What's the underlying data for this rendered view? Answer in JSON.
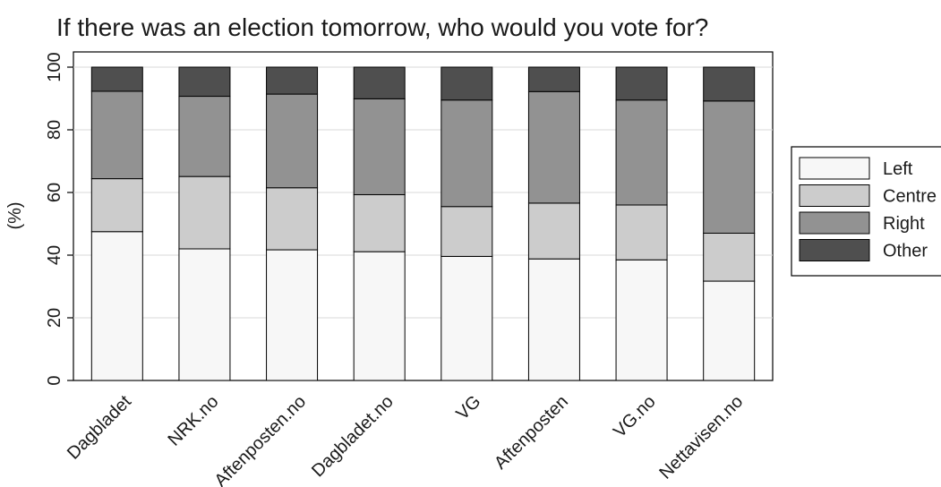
{
  "chart_data": {
    "type": "bar",
    "stacked": true,
    "title": "If there was an election tomorrow, who would you vote for?",
    "xlabel": "",
    "ylabel": "(%)",
    "ylim": [
      0,
      100
    ],
    "yticks": [
      0,
      20,
      40,
      60,
      80,
      100
    ],
    "grid": true,
    "legend_position": "right",
    "categories": [
      "Dagbladet",
      "NRK.no",
      "Aftenposten.no",
      "Dagbladet.no",
      "VG",
      "Aftenposten",
      "VG.no",
      "Nettavisen.no"
    ],
    "series": [
      {
        "name": "Left",
        "color": "#f7f7f7",
        "values": [
          47.5,
          42.0,
          41.7,
          41.1,
          39.6,
          38.8,
          38.5,
          31.7
        ]
      },
      {
        "name": "Centre",
        "color": "#cccccc",
        "values": [
          16.9,
          23.1,
          19.8,
          18.2,
          15.9,
          17.8,
          17.5,
          15.3
        ]
      },
      {
        "name": "Right",
        "color": "#929292",
        "values": [
          27.9,
          25.6,
          29.9,
          30.6,
          34.0,
          35.6,
          33.5,
          42.2
        ]
      },
      {
        "name": "Other",
        "color": "#4f4f4f",
        "values": [
          7.7,
          9.3,
          8.6,
          10.1,
          10.5,
          7.8,
          10.5,
          10.8
        ]
      }
    ]
  }
}
